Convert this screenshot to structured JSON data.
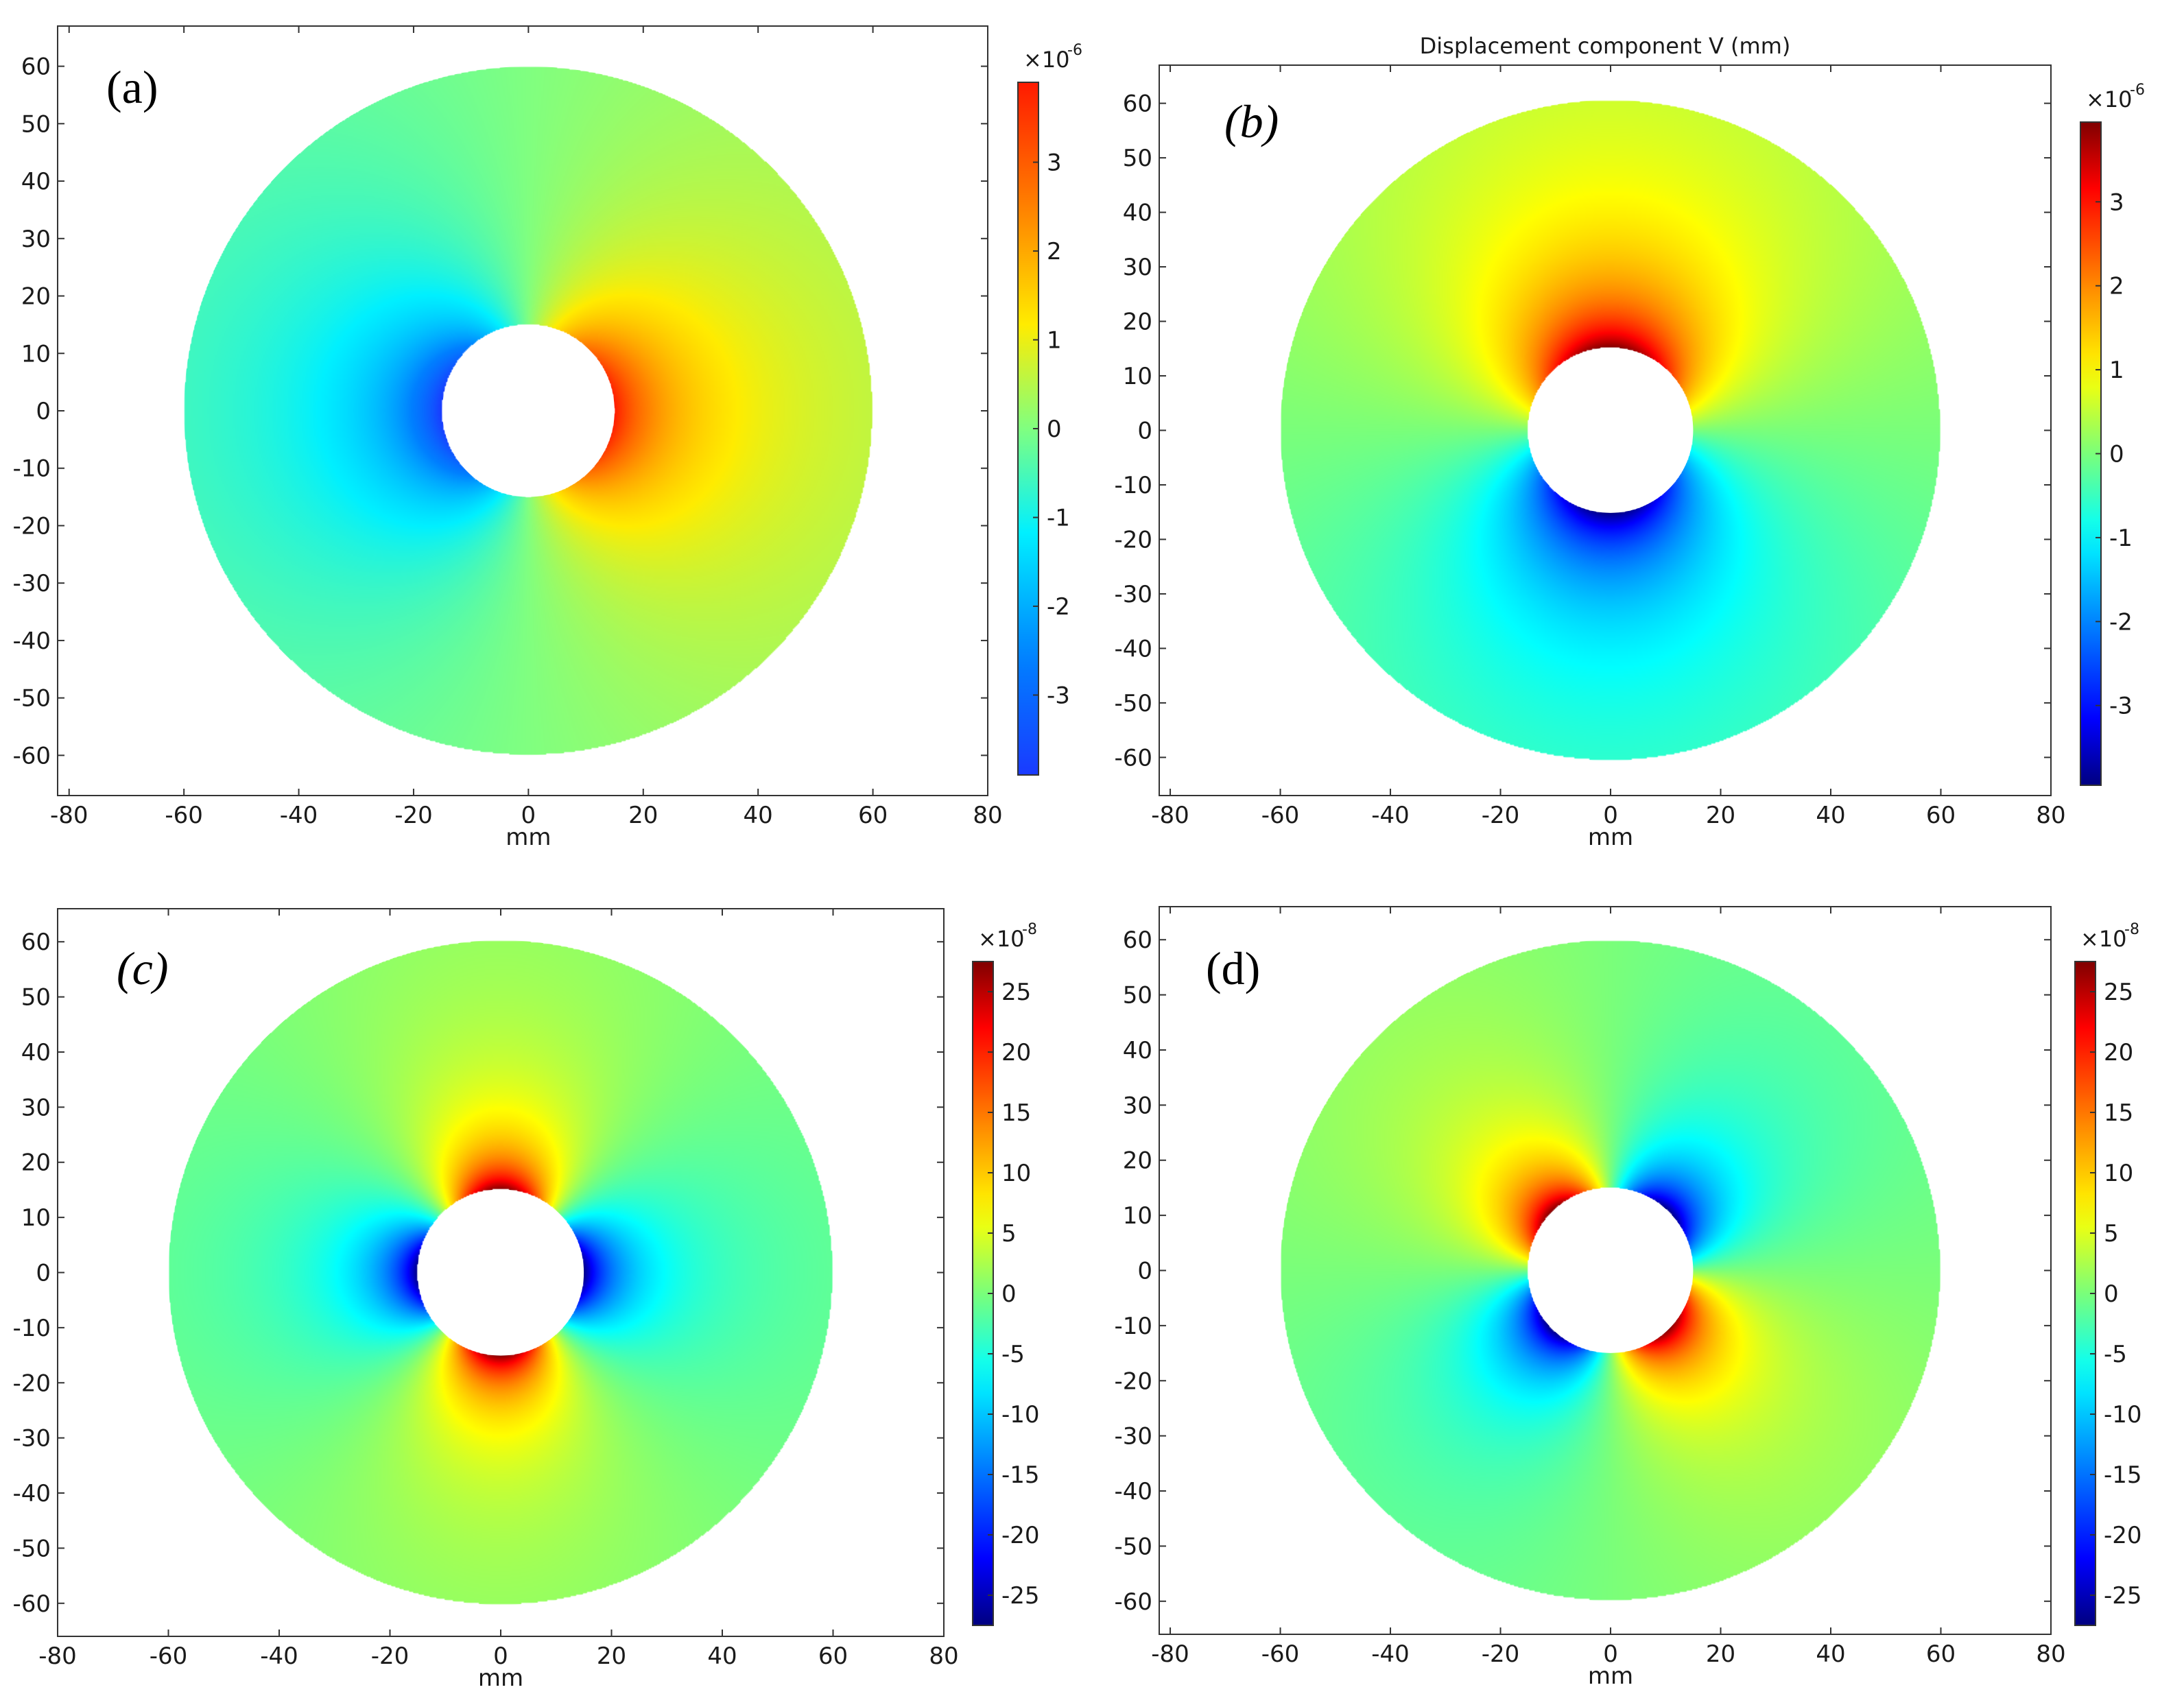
{
  "chart_data": [
    {
      "type": "heatmap",
      "panel_label": "(a)",
      "label_style": "upright",
      "title": "",
      "xlabel": "mm",
      "ylabel": "",
      "xlim": [
        -82,
        80
      ],
      "ylim": [
        -67,
        67
      ],
      "x_ticks": [
        "-80",
        "-60",
        "-40",
        "-20",
        "0",
        "20",
        "40",
        "60",
        "80"
      ],
      "y_ticks": [
        "60",
        "50",
        "40",
        "30",
        "20",
        "10",
        "0",
        "-10",
        "-20",
        "-30",
        "-40",
        "-50",
        "-60"
      ],
      "domain": {
        "shape": "annulus",
        "inner_radius": 15,
        "outer_radius": 60,
        "units": "mm"
      },
      "pattern": "dipole-horizontal",
      "colorbar": {
        "multiplier": "×10",
        "exponent": "-6",
        "range": [
          -3.9,
          3.9
        ],
        "ticks": [
          "3",
          "2",
          "1",
          "0",
          "-1",
          "-2",
          "-3"
        ],
        "colormap": "rainbow"
      }
    },
    {
      "type": "heatmap",
      "panel_label": "(b)",
      "label_style": "italic",
      "title": "Displacement component V (mm)",
      "xlabel": "mm",
      "ylabel": "",
      "xlim": [
        -82,
        80
      ],
      "ylim": [
        -67,
        67
      ],
      "x_ticks": [
        "-80",
        "-60",
        "-40",
        "-20",
        "0",
        "20",
        "40",
        "60",
        "80"
      ],
      "y_ticks": [
        "60",
        "50",
        "40",
        "30",
        "20",
        "10",
        "0",
        "-10",
        "-20",
        "-30",
        "-40",
        "-50",
        "-60"
      ],
      "domain": {
        "shape": "annulus",
        "inner_radius": 15,
        "outer_radius": 60,
        "units": "mm"
      },
      "pattern": "dipole-vertical",
      "colorbar": {
        "multiplier": "×10",
        "exponent": "-6",
        "range": [
          -3.95,
          3.95
        ],
        "ticks": [
          "3",
          "2",
          "1",
          "0",
          "-1",
          "-2",
          "-3"
        ],
        "colormap": "jet"
      }
    },
    {
      "type": "heatmap",
      "panel_label": "(c)",
      "label_style": "italic",
      "title": "",
      "xlabel": "mm",
      "ylabel": "",
      "xlim": [
        -80,
        80
      ],
      "ylim": [
        -66,
        66
      ],
      "x_ticks": [
        "-80",
        "-60",
        "-40",
        "-20",
        "0",
        "20",
        "40",
        "60",
        "80"
      ],
      "y_ticks": [
        "60",
        "50",
        "40",
        "30",
        "20",
        "10",
        "0",
        "-10",
        "-20",
        "-30",
        "-40",
        "-50",
        "-60"
      ],
      "domain": {
        "shape": "annulus",
        "inner_radius": 15,
        "outer_radius": 60,
        "units": "mm"
      },
      "pattern": "quadrupole-axis",
      "colorbar": {
        "multiplier": "×10",
        "exponent": "-8",
        "range": [
          -27.5,
          27.5
        ],
        "ticks": [
          "25",
          "20",
          "15",
          "10",
          "5",
          "0",
          "-5",
          "-10",
          "-15",
          "-20",
          "-25"
        ],
        "colormap": "jet"
      }
    },
    {
      "type": "heatmap",
      "panel_label": "(d)",
      "label_style": "upright",
      "title": "",
      "xlabel": "mm",
      "ylabel": "",
      "xlim": [
        -82,
        80
      ],
      "ylim": [
        -66,
        66
      ],
      "x_ticks": [
        "-80",
        "-60",
        "-40",
        "-20",
        "0",
        "20",
        "40",
        "60",
        "80"
      ],
      "y_ticks": [
        "60",
        "50",
        "40",
        "30",
        "20",
        "10",
        "0",
        "-10",
        "-20",
        "-30",
        "-40",
        "-50",
        "-60"
      ],
      "domain": {
        "shape": "annulus",
        "inner_radius": 15,
        "outer_radius": 60,
        "units": "mm"
      },
      "pattern": "quadrupole-diagonal",
      "colorbar": {
        "multiplier": "×10",
        "exponent": "-8",
        "range": [
          -27.5,
          27.5
        ],
        "ticks": [
          "25",
          "20",
          "15",
          "10",
          "5",
          "0",
          "-5",
          "-10",
          "-15",
          "-20",
          "-25"
        ],
        "colormap": "jet"
      }
    }
  ]
}
